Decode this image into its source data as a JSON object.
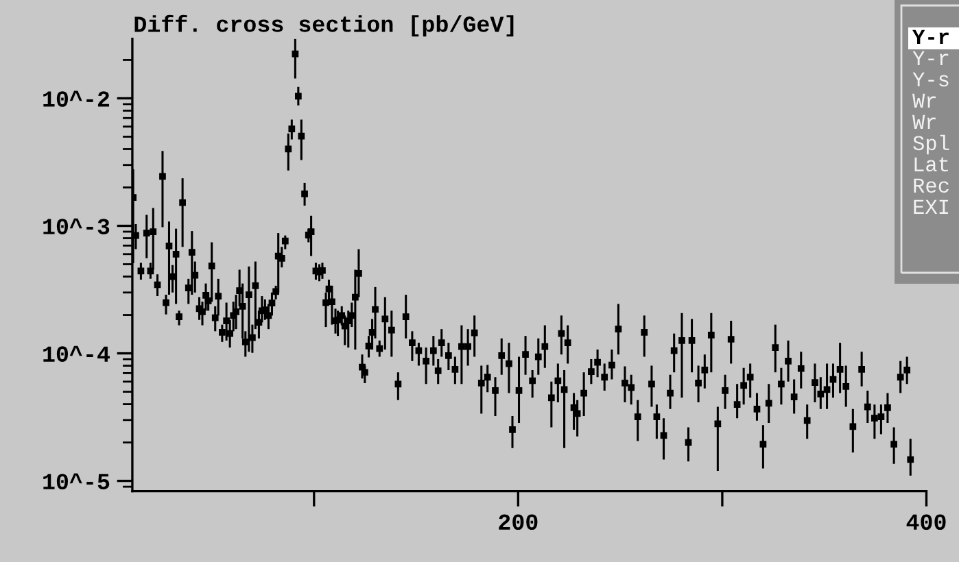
{
  "chart_data": {
    "type": "scatter",
    "title": "Diff. cross section [pb/GeV]",
    "xlim": [
      11,
      400
    ],
    "xticks": [
      {
        "value": 100,
        "label": null
      },
      200,
      {
        "value": 300,
        "label": null
      },
      400
    ],
    "ylim": [
      8.3e-06,
      0.0293
    ],
    "log": "y",
    "yticks": [
      {
        "value": 0.01,
        "label": "10^-2"
      },
      {
        "value": 0.001,
        "label": "10^-3"
      },
      {
        "value": 0.0001,
        "label": "10^-4"
      },
      {
        "value": 1e-05,
        "label": "10^-5"
      }
    ],
    "grid": false,
    "legend": false,
    "marker": "square",
    "annotations": [
      "Y-r",
      "Y-r",
      "Y-s",
      "Wr",
      "Wr",
      "Spl",
      "Lat",
      "Rec",
      "EXI"
    ],
    "series": [
      {
        "color": "#000000",
        "x": [
          11.4,
          12.7,
          15.2,
          18.0,
          19.9,
          21.2,
          23.3,
          25.8,
          27.5,
          29.0,
          30.7,
          32.4,
          33.9,
          35.6,
          38.5,
          40.2,
          41.7,
          43.8,
          45.3,
          47.0,
          48.2,
          49.9,
          51.6,
          53.1,
          55.0,
          57.1,
          58.8,
          60.5,
          61.8,
          63.5,
          65.0,
          66.4,
          68.1,
          69.8,
          71.3,
          73.0,
          74.5,
          76.0,
          77.7,
          79.4,
          81.3,
          82.5,
          84.2,
          85.9,
          87.4,
          89.1,
          90.8,
          92.3,
          93.8,
          95.4,
          97.3,
          98.6,
          100.9,
          102.6,
          104.1,
          105.8,
          107.3,
          108.8,
          110.5,
          111.7,
          113.6,
          115.1,
          116.8,
          118.5,
          120.2,
          121.9,
          123.6,
          124.9,
          126.8,
          128.5,
          130.0,
          132.1,
          134.8,
          138.0,
          141.2,
          145.0,
          148.1,
          151.3,
          154.9,
          158.5,
          160.8,
          162.5,
          165.9,
          169.1,
          172.3,
          175.4,
          178.6,
          182.0,
          185.0,
          188.8,
          191.9,
          195.5,
          197.2,
          200.4,
          203.6,
          207.0,
          209.9,
          213.1,
          216.3,
          219.5,
          221.2,
          222.6,
          224.3,
          227.3,
          229.0,
          232.2,
          235.8,
          238.9,
          242.3,
          245.9,
          249.1,
          252.3,
          255.4,
          258.6,
          261.8,
          265.4,
          267.9,
          271.3,
          274.5,
          276.4,
          280.2,
          283.4,
          285.1,
          288.3,
          291.4,
          294.6,
          297.8,
          301.4,
          304.3,
          307.3,
          310.5,
          313.7,
          317.0,
          320.0,
          322.8,
          326.0,
          328.9,
          332.3,
          335.2,
          338.6,
          341.6,
          345.4,
          348.2,
          351.3,
          354.3,
          357.7,
          360.6,
          364.0,
          368.3,
          371.2,
          374.6,
          377.8,
          381.0,
          384.1,
          387.3,
          390.5,
          392.2
        ],
        "values": [
          0.00167,
          0.00084,
          0.000442,
          0.000877,
          0.000442,
          0.000898,
          0.000345,
          0.00244,
          0.00025,
          0.000695,
          0.0004,
          0.0006,
          0.000194,
          0.00152,
          0.000326,
          0.00062,
          0.00041,
          0.000224,
          0.000212,
          0.000285,
          0.000258,
          0.000484,
          0.00019,
          0.000281,
          0.000146,
          0.00018,
          0.000143,
          0.000198,
          0.000212,
          0.00031,
          0.000234,
          0.000123,
          0.000288,
          0.000133,
          0.000339,
          0.000175,
          0.000216,
          0.000219,
          0.000198,
          0.000248,
          0.000305,
          0.00058,
          0.000557,
          0.00076,
          0.004,
          0.00575,
          0.0223,
          0.0104,
          0.00505,
          0.00178,
          0.000848,
          0.000898,
          0.000442,
          0.000435,
          0.000446,
          0.00025,
          0.00032,
          0.000254,
          0.00018,
          0.000183,
          0.000198,
          0.000164,
          0.00018,
          0.000198,
          0.000276,
          0.000424,
          7.8e-05,
          7.1e-05,
          0.000114,
          0.000146,
          0.000221,
          0.000109,
          0.000186,
          0.000152,
          5.75e-05,
          0.000194,
          0.000121,
          0.000105,
          8.7e-05,
          0.000105,
          7.3e-05,
          0.000121,
          9.6e-05,
          7.5e-05,
          0.000113,
          0.000113,
          0.000145,
          5.85e-05,
          6.5e-05,
          5.1e-05,
          9.6e-05,
          8.3e-05,
          2.52e-05,
          5.1e-05,
          9.8e-05,
          6.1e-05,
          9.4e-05,
          0.000113,
          4.49e-05,
          6.1e-05,
          0.000143,
          5.2e-05,
          0.000121,
          3.75e-05,
          3.37e-05,
          4.88e-05,
          7.2e-05,
          8.5e-05,
          6.5e-05,
          8.1e-05,
          0.000155,
          5.85e-05,
          5.4e-05,
          3.18e-05,
          0.000146,
          5.75e-05,
          3.18e-05,
          2.27e-05,
          4.88e-05,
          0.000105,
          0.000126,
          2e-05,
          0.000126,
          5.85e-05,
          7.4e-05,
          0.000139,
          2.8e-05,
          5.1e-05,
          0.000129,
          3.97e-05,
          5.6e-05,
          6.5e-05,
          3.66e-05,
          1.94e-05,
          4.06e-05,
          0.000111,
          5.75e-05,
          8.7e-05,
          4.56e-05,
          7.6e-05,
          2.97e-05,
          5.9e-05,
          4.8e-05,
          5.2e-05,
          6.25e-05,
          7.5e-05,
          5.5e-05,
          2.67e-05,
          7.5e-05,
          3.81e-05,
          3.1e-05,
          3.18e-05,
          3.75e-05,
          1.94e-05,
          6.5e-05,
          7.4e-05,
          1.47e-05
        ],
        "errors": [
          [
            0.00051,
            0.00278
          ],
          [
            0.000656,
            0.00103
          ],
          [
            0.000378,
            0.000513
          ],
          [
            0.000557,
            0.00122
          ],
          [
            0.000384,
            0.000513
          ],
          [
            0.000453,
            0.00138
          ],
          [
            0.000281,
            0.000417
          ],
          [
            0.000975,
            0.00387
          ],
          [
            0.000202,
            0.000288
          ],
          [
            0.000288,
            0.00108
          ],
          [
            0.0003,
            0.000492
          ],
          [
            0.000244,
            0.00095
          ],
          [
            0.000166,
            0.000216
          ],
          [
            0.000684,
            0.00236
          ],
          [
            0.000244,
            0.000384
          ],
          [
            0.000288,
            0.00091
          ],
          [
            0.0003,
            0.000525
          ],
          [
            0.000183,
            0.000276
          ],
          [
            0.000166,
            0.000254
          ],
          [
            0.000216,
            0.000353
          ],
          [
            0.000216,
            0.0003
          ],
          [
            0.000254,
            0.000743
          ],
          [
            0.000149,
            0.000234
          ],
          [
            0.000198,
            0.000384
          ],
          [
            0.000123,
            0.000168
          ],
          [
            0.000126,
            0.00025
          ],
          [
            0.000111,
            0.000183
          ],
          [
            0.000149,
            0.000254
          ],
          [
            0.000155,
            0.000288
          ],
          [
            0.000234,
            0.000453
          ],
          [
            0.000131,
            0.000353
          ],
          [
            9.4e-05,
            0.000149
          ],
          [
            0.000103,
            0.00048
          ],
          [
            0.000101,
            0.000168
          ],
          [
            0.000155,
            0.000525
          ],
          [
            0.000131,
            0.000216
          ],
          [
            0.000175,
            0.000281
          ],
          [
            0.000183,
            0.000265
          ],
          [
            0.000155,
            0.000244
          ],
          [
            0.000198,
            0.0003
          ],
          [
            0.000265,
            0.000339
          ],
          [
            0.0003,
            0.000877
          ],
          [
            0.000472,
            0.000684
          ],
          [
            0.000656,
            0.00084
          ],
          [
            0.00272,
            0.0053
          ],
          [
            0.00475,
            0.0068
          ],
          [
            0.0143,
            0.0292
          ],
          [
            0.0088,
            0.0123
          ],
          [
            0.00328,
            0.0068
          ],
          [
            0.00144,
            0.00217
          ],
          [
            0.000743,
            0.00095
          ],
          [
            0.00058,
            0.0012
          ],
          [
            0.000378,
            0.000513
          ],
          [
            0.000368,
            0.0005
          ],
          [
            0.000384,
            0.000513
          ],
          [
            0.000161,
            0.0003
          ],
          [
            0.000254,
            0.000378
          ],
          [
            0.000168,
            0.000339
          ],
          [
            0.000143,
            0.000224
          ],
          [
            0.000137,
            0.000216
          ],
          [
            0.000166,
            0.000234
          ],
          [
            0.000116,
            0.000198
          ],
          [
            0.000111,
            0.000216
          ],
          [
            0.000161,
            0.00025
          ],
          [
            0.000107,
            0.000453
          ],
          [
            0.000276,
            0.000656
          ],
          [
            6.35e-05,
            9.8e-05
          ],
          [
            5.85e-05,
            8e-05
          ],
          [
            9.3e-05,
            0.000137
          ],
          [
            0.000107,
            0.000186
          ],
          [
            0.000131,
            0.000331
          ],
          [
            9.4e-05,
            0.000126
          ],
          [
            0.000107,
            0.000276
          ],
          [
            9.4e-05,
            0.000216
          ],
          [
            4.3e-05,
            7.1e-05
          ],
          [
            0.000131,
            0.000288
          ],
          [
            8.7e-05,
            0.000149
          ],
          [
            8e-05,
            0.000121
          ],
          [
            5.75e-05,
            0.000111
          ],
          [
            8e-05,
            0.000137
          ],
          [
            5.75e-05,
            9e-05
          ],
          [
            9.4e-05,
            0.000155
          ],
          [
            7.4e-05,
            0.000121
          ],
          [
            5.75e-05,
            9.4e-05
          ],
          [
            5.75e-05,
            0.000166
          ],
          [
            8e-05,
            0.000155
          ],
          [
            9.4e-05,
            0.000198
          ],
          [
            3.37e-05,
            8e-05
          ],
          [
            4.96e-05,
            8.1e-05
          ],
          [
            3.23e-05,
            6.5e-05
          ],
          [
            6.8e-05,
            0.000131
          ],
          [
            4.88e-05,
            0.000121
          ],
          [
            1.81e-05,
            3.23e-05
          ],
          [
            2.85e-05,
            9.4e-05
          ],
          [
            6.8e-05,
            0.000137
          ],
          [
            4.49e-05,
            7.4e-05
          ],
          [
            6.8e-05,
            0.000131
          ],
          [
            7.7e-05,
            0.000166
          ],
          [
            2.63e-05,
            6e-05
          ],
          [
            4.13e-05,
            8.3e-05
          ],
          [
            9.8e-05,
            0.000198
          ],
          [
            1.81e-05,
            7.4e-05
          ],
          [
            8.3e-05,
            0.000166
          ],
          [
            2.52e-05,
            4.88e-05
          ],
          [
            2.23e-05,
            4.3e-05
          ],
          [
            3.23e-05,
            7.1e-05
          ],
          [
            5.75e-05,
            9e-05
          ],
          [
            6.5e-05,
            0.000107
          ],
          [
            5.1e-05,
            8.3e-05
          ],
          [
            6.25e-05,
            0.000107
          ],
          [
            9.8e-05,
            0.000244
          ],
          [
            4.13e-05,
            7.9e-05
          ],
          [
            3.97e-05,
            6.8e-05
          ],
          [
            2.05e-05,
            4.3e-05
          ],
          [
            9.4e-05,
            0.000198
          ],
          [
            3.81e-05,
            8e-05
          ],
          [
            2.14e-05,
            3.97e-05
          ],
          [
            1.47e-05,
            3.1e-05
          ],
          [
            3.66e-05,
            6.8e-05
          ],
          [
            7.1e-05,
            0.000143
          ],
          [
            4.49e-05,
            0.000207
          ],
          [
            1.42e-05,
            2.63e-05
          ],
          [
            7.1e-05,
            0.000186
          ],
          [
            4.13e-05,
            8e-05
          ],
          [
            5.3e-05,
            9.8e-05
          ],
          [
            7.1e-05,
            0.000207
          ],
          [
            1.2e-05,
            3.81e-05
          ],
          [
            3.66e-05,
            6.8e-05
          ],
          [
            8.3e-05,
            0.00018
          ],
          [
            3.1e-05,
            5.75e-05
          ],
          [
            3.97e-05,
            7.7e-05
          ],
          [
            4.49e-05,
            8.3e-05
          ],
          [
            2.97e-05,
            4.88e-05
          ],
          [
            1.25e-05,
            2.74e-05
          ],
          [
            2.85e-05,
            5.75e-05
          ],
          [
            7.1e-05,
            0.000168
          ],
          [
            3.97e-05,
            7.7e-05
          ],
          [
            6e-05,
            0.000126
          ],
          [
            3.37e-05,
            6.25e-05
          ],
          [
            5.3e-05,
            0.000103
          ],
          [
            2.14e-05,
            3.97e-05
          ],
          [
            4.13e-05,
            8.3e-05
          ],
          [
            3.66e-05,
            6.5e-05
          ],
          [
            3.66e-05,
            8.3e-05
          ],
          [
            4.49e-05,
            8.3e-05
          ],
          [
            4.88e-05,
            0.000121
          ],
          [
            3.81e-05,
            8e-05
          ],
          [
            1.67e-05,
            3.66e-05
          ],
          [
            5.5e-05,
            0.000103
          ],
          [
            2.85e-05,
            5.1e-05
          ],
          [
            2.14e-05,
            3.97e-05
          ],
          [
            2.32e-05,
            3.97e-05
          ],
          [
            2.85e-05,
            4.88e-05
          ],
          [
            1.36e-05,
            2.63e-05
          ],
          [
            4.88e-05,
            8.7e-05
          ],
          [
            5.75e-05,
            9.4e-05
          ],
          [
            1.1e-05,
            2.14e-05
          ]
        ]
      }
    ]
  }
}
